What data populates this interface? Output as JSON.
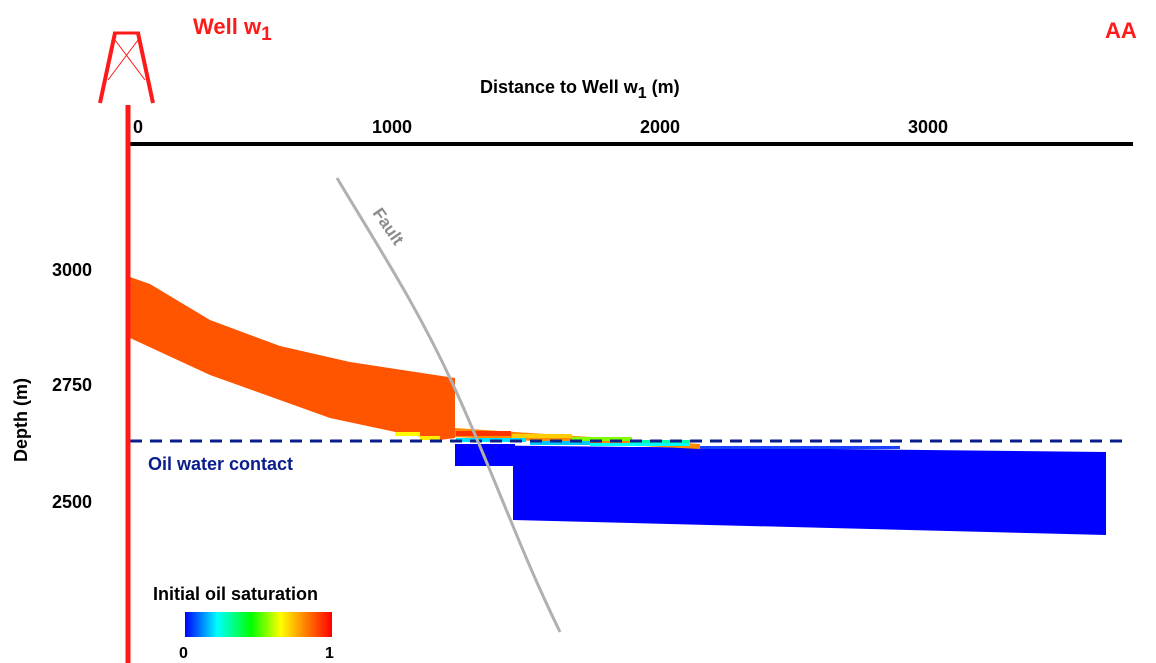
{
  "well": {
    "name": "Well w",
    "subscript": "1"
  },
  "section": {
    "label": "AA"
  },
  "x_axis": {
    "title_prefix": "Distance to Well w",
    "title_subscript": "1",
    "title_suffix": " (m)",
    "ticks": [
      {
        "value": 0,
        "label": "0"
      },
      {
        "value": 1000,
        "label": "1000"
      },
      {
        "value": 2000,
        "label": "2000"
      },
      {
        "value": 3000,
        "label": "3000"
      }
    ]
  },
  "y_axis": {
    "title": "Depth (m)",
    "ticks": [
      {
        "value": 3000,
        "label": "3000"
      },
      {
        "value": 2750,
        "label": "2750"
      },
      {
        "value": 2500,
        "label": "2500"
      }
    ]
  },
  "annotations": {
    "fault": "Fault",
    "oil_water_contact": "Oil water contact"
  },
  "colorbar": {
    "title": "Initial oil saturation",
    "min_label": "0",
    "max_label": "1",
    "colors": [
      "#0000ff",
      "#00ffff",
      "#00ff00",
      "#ffff00",
      "#ff8000",
      "#ff0000"
    ]
  },
  "colors": {
    "oil": "#ff5500",
    "water": "#0000ff",
    "fault": "#b0b0b0",
    "well": "#ff1a1a",
    "owc": "#0a1d8c"
  }
}
